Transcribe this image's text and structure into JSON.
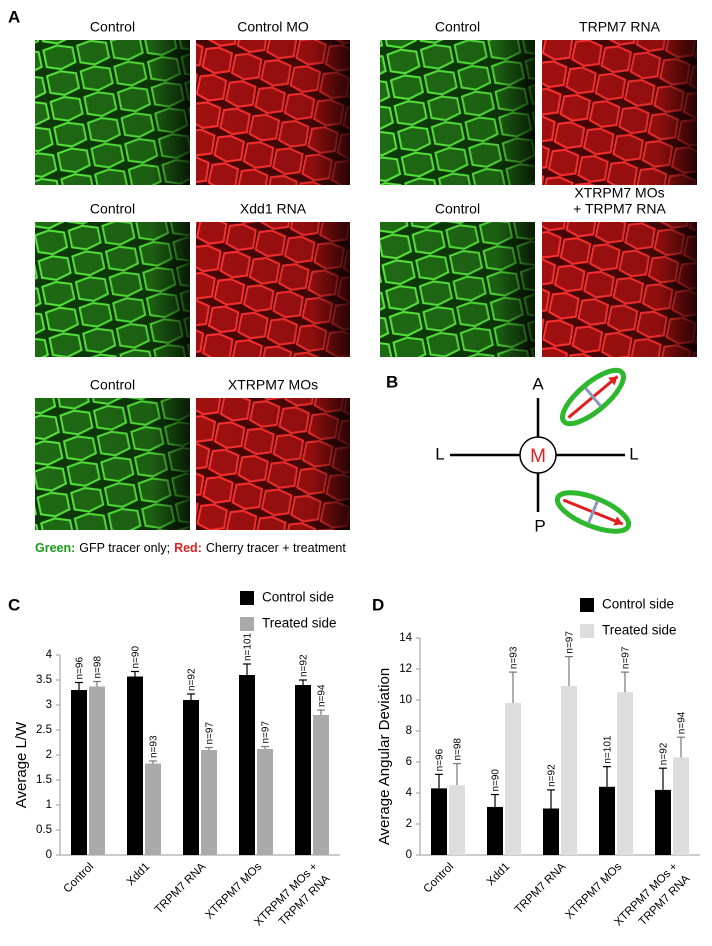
{
  "panel_labels": [
    "A",
    "B",
    "C",
    "D"
  ],
  "panel_a": {
    "images": [
      {
        "label": [
          "Control"
        ],
        "color": "green"
      },
      {
        "label": [
          "Control MO"
        ],
        "color": "red"
      },
      {
        "label": [
          "Control"
        ],
        "color": "green"
      },
      {
        "label": [
          "TRPM7 RNA"
        ],
        "color": "red"
      },
      {
        "label": [
          "Control"
        ],
        "color": "green"
      },
      {
        "label": [
          "Xdd1 RNA"
        ],
        "color": "red"
      },
      {
        "label": [
          "Control"
        ],
        "color": "green"
      },
      {
        "label": [
          "XTRPM7 MOs",
          "+ TRPM7 RNA"
        ],
        "color": "red"
      },
      {
        "label": [
          "Control"
        ],
        "color": "green"
      },
      {
        "label": [
          "XTRPM7 MOs"
        ],
        "color": "red"
      }
    ]
  },
  "caption": {
    "green_label": "Green:",
    "green_text": "GFP tracer only;",
    "red_label": "Red:",
    "red_text": "Cherry tracer + treatment"
  },
  "diagram": {
    "anterior": "A",
    "posterior": "P",
    "left": "L",
    "right": "L",
    "center": "M"
  },
  "chart_data": [
    {
      "type": "bar",
      "ylabel": "Average L/W",
      "categories": [
        [
          "Control"
        ],
        [
          "Xdd1"
        ],
        [
          "TRPM7 RNA"
        ],
        [
          "XTRPM7 MOs"
        ],
        [
          "XTRPM7 MOs +",
          "TRPM7 RNA"
        ]
      ],
      "series": [
        {
          "name": "Control side",
          "color": "#000000",
          "values": [
            3.3,
            3.57,
            3.1,
            3.6,
            3.4
          ],
          "errors": [
            0.15,
            0.1,
            0.12,
            0.22,
            0.1
          ],
          "n_labels": [
            "n=96",
            "n=90",
            "n=92",
            "n=101",
            "n=92"
          ]
        },
        {
          "name": "Treated side",
          "color": "#aaaaaa",
          "values": [
            3.37,
            1.83,
            2.1,
            2.12,
            2.8
          ],
          "errors": [
            0.1,
            0.05,
            0.05,
            0.05,
            0.1
          ],
          "n_labels": [
            "n=98",
            "n=93",
            "n=97",
            "n=97",
            "n=94"
          ]
        }
      ],
      "ylim": [
        0,
        4
      ],
      "yticks": [
        0,
        0.5,
        1,
        1.5,
        2,
        2.5,
        3,
        3.5,
        4
      ],
      "legend": "top-right"
    },
    {
      "type": "bar",
      "ylabel": "Average Angular Deviation",
      "categories": [
        [
          "Control"
        ],
        [
          "Xdd1"
        ],
        [
          "TRPM7 RNA"
        ],
        [
          "XTRPM7 MOs"
        ],
        [
          "XTRPM7 MOs +",
          "TRPM7 RNA"
        ]
      ],
      "series": [
        {
          "name": "Control side",
          "color": "#000000",
          "values": [
            4.3,
            3.1,
            3.0,
            4.4,
            4.2
          ],
          "errors": [
            0.9,
            0.8,
            1.2,
            1.3,
            1.4
          ],
          "n_labels": [
            "n=96",
            "n=90",
            "n=92",
            "n=101",
            "n=92"
          ]
        },
        {
          "name": "Treated side",
          "color": "#dddddd",
          "values": [
            4.5,
            9.8,
            10.9,
            10.5,
            6.3
          ],
          "errors": [
            1.4,
            2.0,
            1.9,
            1.3,
            1.3
          ],
          "n_labels": [
            "n=98",
            "n=93",
            "n=97",
            "n=97",
            "n=94"
          ]
        }
      ],
      "ylim": [
        0,
        14
      ],
      "yticks": [
        0,
        2,
        4,
        6,
        8,
        10,
        12,
        14
      ],
      "legend": "top-right"
    }
  ]
}
